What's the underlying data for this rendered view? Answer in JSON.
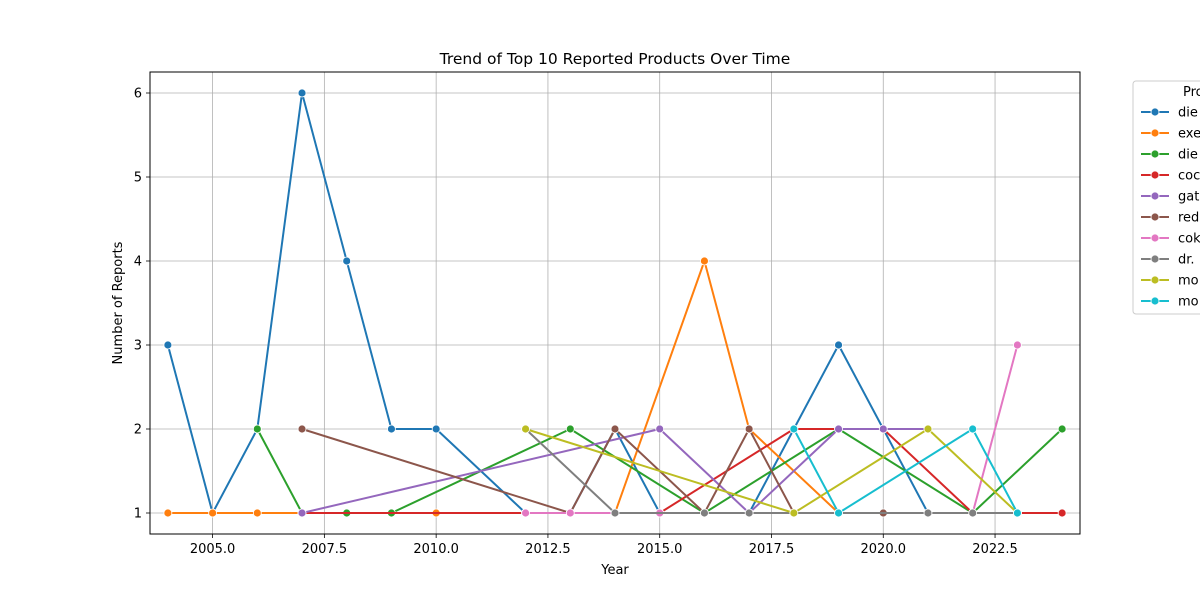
{
  "chart_data": {
    "type": "line",
    "title": "Trend of Top 10 Reported Products Over Time",
    "xlabel": "Year",
    "ylabel": "Number of Reports",
    "xlim": [
      2003.6,
      2024.4
    ],
    "ylim": [
      0.75,
      6.25
    ],
    "xticks": [
      2005.0,
      2007.5,
      2010.0,
      2012.5,
      2015.0,
      2017.5,
      2020.0,
      2022.5,
      2025.0
    ],
    "xtick_labels": [
      "2005.0",
      "2007.5",
      "2010.0",
      "2012.5",
      "2015.0",
      "2017.5",
      "2020.0",
      "2022.5",
      "2025.0"
    ],
    "yticks": [
      1,
      2,
      3,
      4,
      5,
      6
    ],
    "ytick_labels": [
      "1",
      "2",
      "3",
      "4",
      "5",
      "6"
    ],
    "grid": true,
    "legend_title": "Pro",
    "legend_placement": "outside-top-right",
    "series": [
      {
        "name": "die",
        "color": "#1f77b4",
        "x": [
          2004,
          2005,
          2006,
          2007,
          2008,
          2009,
          2010,
          2012,
          2013,
          2014,
          2015,
          2016,
          2017,
          2018,
          2019,
          2020,
          2021,
          2022,
          2023
        ],
        "y": [
          3,
          1,
          2,
          6,
          4,
          2,
          2,
          1,
          1,
          2,
          1,
          1,
          1,
          2,
          3,
          2,
          1,
          1,
          1
        ]
      },
      {
        "name": "exe",
        "color": "#ff7f0e",
        "x": [
          2004,
          2005,
          2006,
          2007,
          2008,
          2009,
          2010,
          2012,
          2013,
          2014,
          2016,
          2017,
          2019
        ],
        "y": [
          1,
          1,
          1,
          1,
          1,
          1,
          1,
          1,
          1,
          1,
          4,
          2,
          1
        ]
      },
      {
        "name": "die",
        "color": "#2ca02c",
        "x": [
          2006,
          2007,
          2008,
          2009,
          2013,
          2016,
          2019,
          2022,
          2024
        ],
        "y": [
          2,
          1,
          1,
          1,
          2,
          1,
          2,
          1,
          2
        ]
      },
      {
        "name": "coc",
        "color": "#d62728",
        "x": [
          2007,
          2012,
          2015,
          2018,
          2019,
          2020,
          2022,
          2023,
          2024
        ],
        "y": [
          1,
          1,
          1,
          2,
          2,
          2,
          1,
          1,
          1
        ]
      },
      {
        "name": "gat",
        "color": "#9467bd",
        "x": [
          2007,
          2015,
          2017,
          2019,
          2020,
          2021
        ],
        "y": [
          1,
          2,
          1,
          2,
          2,
          2
        ]
      },
      {
        "name": "red",
        "color": "#8c564b",
        "x": [
          2007,
          2013,
          2014,
          2016,
          2017,
          2018,
          2020,
          2021
        ],
        "y": [
          2,
          1,
          2,
          1,
          2,
          1,
          1,
          1
        ]
      },
      {
        "name": "cok",
        "color": "#e377c2",
        "x": [
          2012,
          2013,
          2014,
          2015,
          2016,
          2017,
          2018,
          2022,
          2023
        ],
        "y": [
          1,
          1,
          1,
          1,
          1,
          1,
          1,
          1,
          3
        ]
      },
      {
        "name": "dr.",
        "color": "#7f7f7f",
        "x": [
          2012,
          2014,
          2016,
          2017,
          2019,
          2021,
          2022,
          2023
        ],
        "y": [
          2,
          1,
          1,
          1,
          1,
          1,
          1,
          1
        ]
      },
      {
        "name": "mo",
        "color": "#bcbd22",
        "x": [
          2012,
          2018,
          2021,
          2023
        ],
        "y": [
          2,
          1,
          2,
          1
        ]
      },
      {
        "name": "mo",
        "color": "#17becf",
        "x": [
          2018,
          2019,
          2022,
          2023
        ],
        "y": [
          2,
          1,
          2,
          1
        ]
      }
    ]
  }
}
